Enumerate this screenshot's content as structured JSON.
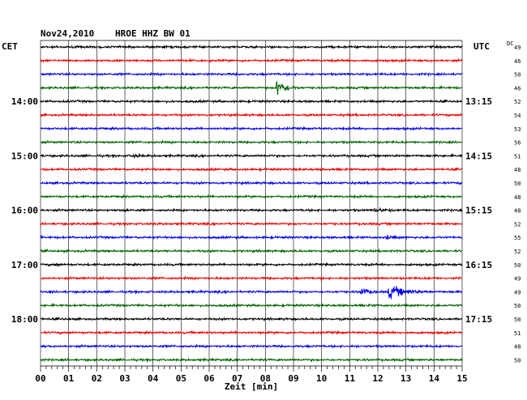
{
  "header": {
    "date": "Nov24,2010",
    "station": "HROE HHZ BW 01",
    "left_zone": "CET",
    "right_zone": "UTC",
    "dc_label": "DC"
  },
  "chart_data": {
    "type": "line",
    "title": "Nov24,2010  HROE HHZ BW 01",
    "xlabel": "Zeit [min]",
    "xlim": [
      0,
      15
    ],
    "x_ticks": [
      "00",
      "01",
      "02",
      "03",
      "04",
      "05",
      "06",
      "07",
      "08",
      "09",
      "10",
      "11",
      "12",
      "13",
      "14",
      "15"
    ],
    "grid": true,
    "trace_colors": [
      "#000000",
      "#ee0000",
      "#0000ee",
      "#006400"
    ],
    "left_time_labels": [
      {
        "row": 4,
        "text": "14:00"
      },
      {
        "row": 8,
        "text": "15:00"
      },
      {
        "row": 12,
        "text": "16:00"
      },
      {
        "row": 16,
        "text": "17:00"
      },
      {
        "row": 20,
        "text": "18:00"
      }
    ],
    "right_time_labels": [
      {
        "row": 4,
        "text": "13:15"
      },
      {
        "row": 8,
        "text": "14:15"
      },
      {
        "row": 12,
        "text": "15:15"
      },
      {
        "row": 16,
        "text": "16:15"
      },
      {
        "row": 20,
        "text": "17:15"
      }
    ],
    "dc_values": [
      "49",
      "46",
      "50",
      "46",
      "52",
      "54",
      "53",
      "56",
      "51",
      "48",
      "50",
      "48",
      "48",
      "52",
      "55",
      "52",
      "50",
      "49",
      "49",
      "50",
      "50",
      "51",
      "48",
      "50"
    ],
    "events": [
      {
        "row": 3,
        "minute": 8.4,
        "amplitude": 2.6,
        "duration": 0.8
      },
      {
        "row": 8,
        "minute": 3.3,
        "amplitude": 0.5,
        "duration": 0.6
      },
      {
        "row": 12,
        "minute": 3.0,
        "amplitude": 0.35,
        "duration": 0.4
      },
      {
        "row": 12,
        "minute": 11.9,
        "amplitude": 0.6,
        "duration": 0.8
      },
      {
        "row": 14,
        "minute": 12.3,
        "amplitude": 0.5,
        "duration": 0.6
      },
      {
        "row": 16,
        "minute": 0.5,
        "amplitude": 0.35,
        "duration": 0.6
      },
      {
        "row": 18,
        "minute": 11.4,
        "amplitude": 1.4,
        "duration": 0.6
      },
      {
        "row": 18,
        "minute": 12.4,
        "amplitude": 2.0,
        "duration": 1.4
      }
    ]
  }
}
